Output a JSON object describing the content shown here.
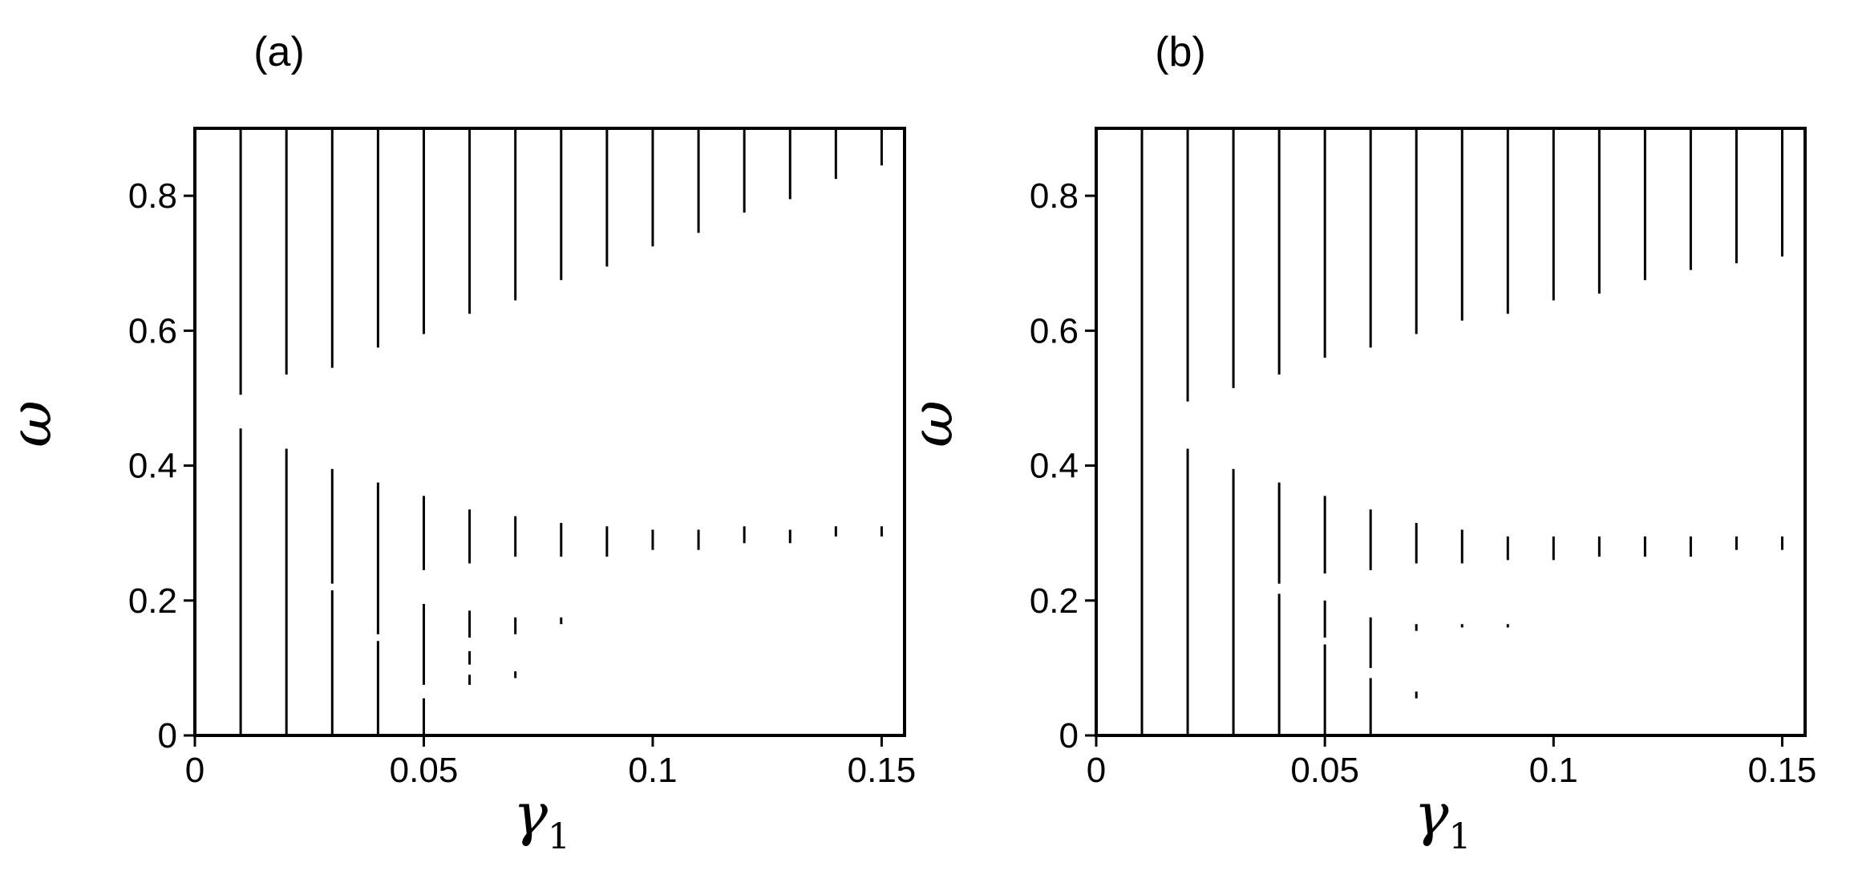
{
  "chart_data": [
    {
      "type": "segment",
      "title": "(a)",
      "x_label": "γ",
      "x_label_subscript": "1",
      "y_label": "ω",
      "xlim": [
        0,
        0.155
      ],
      "ylim": [
        0,
        0.9
      ],
      "xticks": [
        0,
        0.05,
        0.1,
        0.15
      ],
      "yticks": [
        0,
        0.2,
        0.4,
        0.6,
        0.8
      ],
      "color": "#000000",
      "x": [
        0.01,
        0.02,
        0.03,
        0.04,
        0.05,
        0.06,
        0.07,
        0.08,
        0.09,
        0.1,
        0.11,
        0.12,
        0.13,
        0.14,
        0.15
      ],
      "ranges": [
        [
          [
            0.505,
            0.9
          ],
          [
            0,
            0.455
          ]
        ],
        [
          [
            0.535,
            0.9
          ],
          [
            0,
            0.425
          ]
        ],
        [
          [
            0.545,
            0.9
          ],
          [
            0.225,
            0.395
          ],
          [
            0,
            0.215
          ]
        ],
        [
          [
            0.575,
            0.9
          ],
          [
            0.15,
            0.375
          ],
          [
            0,
            0.14
          ]
        ],
        [
          [
            0.595,
            0.9
          ],
          [
            0.245,
            0.355
          ],
          [
            0.075,
            0.195
          ],
          [
            0,
            0.055
          ]
        ],
        [
          [
            0.625,
            0.9
          ],
          [
            0.255,
            0.335
          ],
          [
            0.145,
            0.185
          ],
          [
            0.105,
            0.125
          ],
          [
            0.075,
            0.09
          ]
        ],
        [
          [
            0.645,
            0.9
          ],
          [
            0.265,
            0.325
          ],
          [
            0.15,
            0.175
          ],
          [
            0.085,
            0.095
          ]
        ],
        [
          [
            0.675,
            0.9
          ],
          [
            0.265,
            0.315
          ],
          [
            0.165,
            0.175
          ]
        ],
        [
          [
            0.695,
            0.9
          ],
          [
            0.265,
            0.31
          ]
        ],
        [
          [
            0.725,
            0.9
          ],
          [
            0.275,
            0.305
          ]
        ],
        [
          [
            0.745,
            0.9
          ],
          [
            0.275,
            0.305
          ]
        ],
        [
          [
            0.775,
            0.9
          ],
          [
            0.285,
            0.31
          ]
        ],
        [
          [
            0.795,
            0.9
          ],
          [
            0.285,
            0.305
          ]
        ],
        [
          [
            0.825,
            0.9
          ],
          [
            0.295,
            0.31
          ]
        ],
        [
          [
            0.845,
            0.9
          ],
          [
            0.295,
            0.31
          ]
        ]
      ]
    },
    {
      "type": "segment",
      "title": "(b)",
      "x_label": "γ",
      "x_label_subscript": "1",
      "y_label": "ω",
      "xlim": [
        0,
        0.155
      ],
      "ylim": [
        0,
        0.9
      ],
      "xticks": [
        0,
        0.05,
        0.1,
        0.15
      ],
      "yticks": [
        0,
        0.2,
        0.4,
        0.6,
        0.8
      ],
      "color": "#000000",
      "x": [
        0.01,
        0.02,
        0.03,
        0.04,
        0.05,
        0.06,
        0.07,
        0.08,
        0.09,
        0.1,
        0.11,
        0.12,
        0.13,
        0.14,
        0.15
      ],
      "ranges": [
        [
          [
            0,
            0.9
          ]
        ],
        [
          [
            0.495,
            0.9
          ],
          [
            0,
            0.425
          ]
        ],
        [
          [
            0.515,
            0.9
          ],
          [
            0,
            0.395
          ]
        ],
        [
          [
            0.535,
            0.9
          ],
          [
            0.225,
            0.375
          ],
          [
            0,
            0.21
          ]
        ],
        [
          [
            0.56,
            0.9
          ],
          [
            0.24,
            0.355
          ],
          [
            0.145,
            0.2
          ],
          [
            0,
            0.135
          ]
        ],
        [
          [
            0.575,
            0.9
          ],
          [
            0.245,
            0.335
          ],
          [
            0.1,
            0.175
          ],
          [
            0,
            0.085
          ]
        ],
        [
          [
            0.595,
            0.9
          ],
          [
            0.255,
            0.315
          ],
          [
            0.155,
            0.165
          ],
          [
            0.055,
            0.065
          ]
        ],
        [
          [
            0.615,
            0.9
          ],
          [
            0.255,
            0.305
          ],
          [
            0.16,
            0.165
          ]
        ],
        [
          [
            0.625,
            0.9
          ],
          [
            0.26,
            0.295
          ],
          [
            0.16,
            0.165
          ]
        ],
        [
          [
            0.645,
            0.9
          ],
          [
            0.26,
            0.295
          ]
        ],
        [
          [
            0.655,
            0.9
          ],
          [
            0.265,
            0.295
          ]
        ],
        [
          [
            0.675,
            0.9
          ],
          [
            0.265,
            0.295
          ]
        ],
        [
          [
            0.69,
            0.9
          ],
          [
            0.265,
            0.295
          ]
        ],
        [
          [
            0.7,
            0.9
          ],
          [
            0.275,
            0.295
          ]
        ],
        [
          [
            0.71,
            0.9
          ],
          [
            0.275,
            0.295
          ]
        ]
      ]
    }
  ]
}
